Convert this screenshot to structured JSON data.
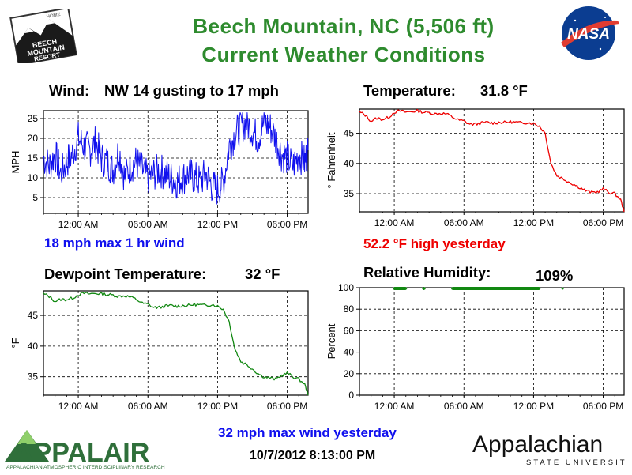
{
  "header": {
    "title_line1": "Beech Mountain, NC  (5,506 ft)",
    "title_line2": "Current Weather Conditions",
    "logo_text": [
      "BEECH",
      "MOUNTAIN",
      "RESORT"
    ],
    "logo_small": "HOME",
    "nasa_text": "NASA"
  },
  "panels": {
    "wind": {
      "label": "Wind:",
      "value": "NW  14 gusting to 17 mph",
      "footnote": "18 mph max 1 hr wind"
    },
    "temperature": {
      "label": "Temperature:",
      "value": "31.8 °F",
      "footnote": "52.2 °F high yesterday"
    },
    "dewpoint": {
      "label": "Dewpoint Temperature:",
      "value": "32 °F"
    },
    "humidity": {
      "label": "Relative Humidity:",
      "value": "109%"
    }
  },
  "footer": {
    "max_wind": "32 mph max wind yesterday",
    "timestamp": "10/7/2012 8:13:00 PM",
    "appalair_text": "APPALAIR",
    "appalair_sub": "APPALACHIAN ATMOSPHERIC INTERDISCIPLINARY RESEARCH",
    "appstate_main": "Appalachian",
    "appstate_sub": "STATE UNIVERSITY"
  },
  "colors": {
    "title": "#2e8b2e",
    "wind": "#1010ee",
    "temperature": "#ee0000",
    "dewpoint": "#118811",
    "humidity": "#118811",
    "grid": "#000000"
  },
  "chart_data": [
    {
      "type": "line",
      "id": "wind",
      "ylabel": "MPH",
      "xticks": [
        "12:00 AM",
        "06:00 AM",
        "12:00 PM",
        "06:00 PM"
      ],
      "yticks": [
        5,
        10,
        15,
        20,
        25
      ],
      "ylim": [
        1,
        27
      ],
      "xlim": [
        -3,
        19.8
      ],
      "grid": true,
      "series": [
        {
          "x": [
            -3,
            -2.5,
            -2,
            -1.5,
            -1,
            -0.5,
            0,
            0.5,
            1,
            1.5,
            2,
            2.5,
            3,
            3.5,
            4,
            4.5,
            5,
            5.5,
            6,
            6.5,
            7,
            7.5,
            8,
            8.5,
            9,
            9.5,
            10,
            10.5,
            11,
            11.5,
            12,
            12.5,
            13,
            13.5,
            14,
            14.5,
            15,
            15.5,
            16,
            16.5,
            17,
            17.5,
            18,
            18.5,
            19,
            19.5,
            19.8
          ],
          "y": [
            15,
            13,
            16,
            11,
            14,
            16,
            20,
            18,
            17,
            19,
            15,
            14,
            12,
            17,
            10,
            13,
            14,
            12,
            10,
            11,
            12,
            11,
            10,
            9,
            10,
            11,
            10,
            9,
            11,
            8,
            7,
            9,
            18,
            21,
            23,
            24,
            22,
            20,
            24,
            23,
            20,
            16,
            15,
            13,
            16,
            14,
            17
          ]
        }
      ]
    },
    {
      "type": "line",
      "id": "temperature",
      "ylabel": "° Fahrenheit",
      "xticks": [
        "12:00 AM",
        "06:00 AM",
        "12:00 PM",
        "06:00 PM"
      ],
      "yticks": [
        35,
        40,
        45
      ],
      "ylim": [
        32,
        49
      ],
      "xlim": [
        -3,
        19.8
      ],
      "grid": true,
      "series": [
        {
          "x": [
            -3,
            -2.5,
            -2,
            -1.5,
            -1,
            -0.5,
            0,
            0.5,
            1,
            1.5,
            2,
            2.5,
            3,
            3.5,
            4,
            4.5,
            5,
            5.5,
            6,
            6.5,
            7,
            7.5,
            8,
            8.5,
            9,
            9.5,
            10,
            10.5,
            11,
            11.5,
            12,
            12.5,
            13,
            13.5,
            14,
            14.5,
            15,
            15.5,
            16,
            16.5,
            17,
            17.5,
            18,
            18.5,
            19,
            19.5,
            19.8
          ],
          "y": [
            48.5,
            48,
            47,
            47.5,
            47.3,
            47.6,
            48.5,
            48.7,
            48.5,
            48.6,
            48.7,
            48.5,
            48.4,
            48.2,
            48.3,
            48.2,
            47.7,
            47.2,
            47,
            46.5,
            46.5,
            46.7,
            46.8,
            46.7,
            46.8,
            46.8,
            46.9,
            46.8,
            46.7,
            46.8,
            46.6,
            46.2,
            45,
            40,
            38,
            37.5,
            37,
            36.5,
            36,
            35.5,
            35.2,
            35.3,
            35.8,
            35.2,
            35,
            34,
            32
          ]
        }
      ]
    },
    {
      "type": "line",
      "id": "dewpoint",
      "ylabel": "°F",
      "xticks": [
        "12:00 AM",
        "06:00 AM",
        "12:00 PM",
        "06:00 PM"
      ],
      "yticks": [
        35,
        40,
        45
      ],
      "ylim": [
        32,
        49
      ],
      "xlim": [
        -3,
        19.8
      ],
      "grid": true,
      "series": [
        {
          "x": [
            -3,
            -2.5,
            -2,
            -1.5,
            -1,
            -0.5,
            0,
            0.5,
            1,
            1.5,
            2,
            2.5,
            3,
            3.5,
            4,
            4.5,
            5,
            5.5,
            6,
            6.5,
            7,
            7.5,
            8,
            8.5,
            9,
            9.5,
            10,
            10.5,
            11,
            11.5,
            12,
            12.5,
            13,
            13.5,
            14,
            14.5,
            15,
            15.5,
            16,
            16.5,
            17,
            17.5,
            18,
            18.5,
            19,
            19.5,
            19.8
          ],
          "y": [
            48.5,
            48.1,
            47.3,
            47.6,
            47.6,
            47.8,
            48.4,
            48.6,
            48.5,
            48.6,
            48.5,
            48.4,
            48.3,
            48.1,
            48.2,
            48.0,
            47.6,
            47.0,
            46.8,
            46.3,
            46.3,
            46.5,
            46.6,
            46.5,
            46.6,
            46.6,
            46.8,
            46.7,
            46.6,
            46.8,
            46.5,
            46.0,
            44.0,
            39.5,
            37.5,
            37.0,
            36.3,
            35.5,
            35.0,
            34.8,
            34.6,
            35.2,
            35.6,
            35.0,
            34.6,
            33.8,
            32.0
          ]
        }
      ]
    },
    {
      "type": "line",
      "id": "humidity",
      "ylabel": "Percent",
      "xticks": [
        "12:00 AM",
        "06:00 AM",
        "12:00 PM",
        "06:00 PM"
      ],
      "yticks": [
        0,
        20,
        40,
        60,
        80,
        100
      ],
      "ylim": [
        0,
        100
      ],
      "xlim": [
        -3,
        19.8
      ],
      "grid": true,
      "series": [
        {
          "x": [
            0,
            0.5,
            1.0,
            2.5,
            2.6,
            5.0,
            5.5,
            12.5,
            14.5
          ],
          "y": [
            100,
            100,
            100,
            100,
            100,
            100,
            100,
            100,
            100
          ]
        }
      ]
    }
  ]
}
